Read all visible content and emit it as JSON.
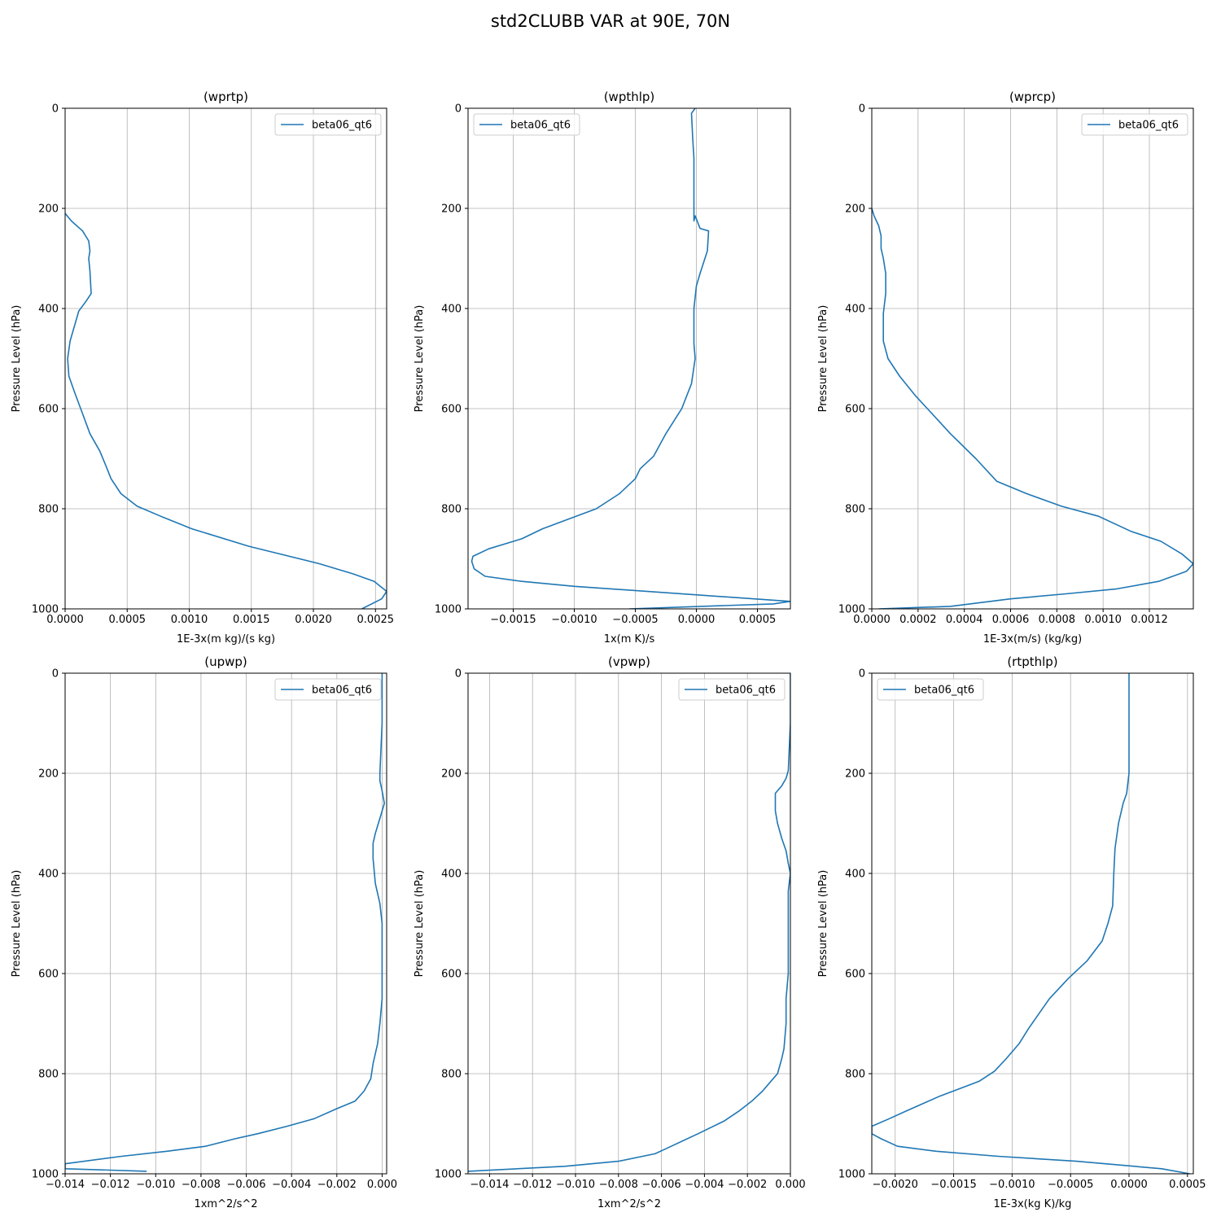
{
  "figure": {
    "title": "std2CLUBB VAR at 90E, 70N"
  },
  "chart_data": [
    {
      "type": "line",
      "title": "(wprtp)",
      "xlabel": "1E-3x(m kg)/(s kg)",
      "ylabel": "Pressure Level (hPa)",
      "xlim": [
        0,
        0.00259
      ],
      "ylim": [
        1000,
        0
      ],
      "xticks": [
        0,
        0.0005,
        0.001,
        0.0015,
        0.002,
        0.0025
      ],
      "xticklabels": [
        "0.0000",
        "0.0005",
        "0.0010",
        "0.0015",
        "0.0020",
        "0.0025"
      ],
      "yticks": [
        0,
        200,
        400,
        600,
        800,
        1000
      ],
      "yticklabels": [
        "0",
        "200",
        "400",
        "600",
        "800",
        "1000"
      ],
      "grid": true,
      "legend": "top-right",
      "color": "#1f77b4",
      "series": [
        {
          "name": "beta06_qt6",
          "x": [
            0.0,
            5e-05,
            0.00014,
            0.00019,
            0.0002,
            0.00019,
            0.0002,
            0.00021,
            0.00017,
            0.00011,
            4e-05,
            2e-05,
            3e-05,
            8e-05,
            0.00014,
            0.0002,
            0.00028,
            0.00033,
            0.00037,
            0.00045,
            0.00058,
            0.00077,
            0.00102,
            0.00148,
            0.00205,
            0.00232,
            0.00249,
            0.00259,
            0.00255,
            0.00239
          ],
          "y": [
            210,
            225,
            245,
            265,
            285,
            300,
            325,
            370,
            385,
            405,
            465,
            500,
            535,
            570,
            610,
            650,
            685,
            715,
            740,
            770,
            795,
            815,
            840,
            875,
            910,
            930,
            945,
            965,
            980,
            1000
          ]
        }
      ]
    },
    {
      "type": "line",
      "title": "(wpthlp)",
      "xlabel": "1x(m K)/s",
      "ylabel": "Pressure Level (hPa)",
      "xlim": [
        -0.00187,
        0.00077
      ],
      "ylim": [
        1000,
        0
      ],
      "xticks": [
        -0.0015,
        -0.001,
        -0.0005,
        0,
        0.0005
      ],
      "xticklabels": [
        "−0.0015",
        "−0.0010",
        "−0.0005",
        "0.0000",
        "0.0005"
      ],
      "yticks": [
        0,
        200,
        400,
        600,
        800,
        1000
      ],
      "yticklabels": [
        "0",
        "200",
        "400",
        "600",
        "800",
        "1000"
      ],
      "grid": true,
      "legend": "top-left",
      "color": "#1f77b4",
      "series": [
        {
          "name": "beta06_qt6",
          "x": [
            -1e-05,
            -4e-05,
            -3e-05,
            -2e-05,
            -2e-05,
            -2e-05,
            -2e-05,
            -1e-05,
            3e-05,
            0.0001,
            9e-05,
            3e-05,
            0.0,
            -2e-05,
            -2e-05,
            -1e-05,
            -4e-05,
            -0.00012,
            -0.00025,
            -0.00035,
            -0.00046,
            -0.0005,
            -0.00063,
            -0.00082,
            -0.00126,
            -0.00143,
            -0.0017,
            -0.00183,
            -0.00184,
            -0.00182,
            -0.00173,
            -0.00143,
            -0.001,
            0.00077,
            0.00063,
            -0.00055
          ],
          "y": [
            0,
            10,
            60,
            100,
            150,
            200,
            225,
            215,
            240,
            245,
            285,
            330,
            355,
            400,
            470,
            500,
            550,
            600,
            650,
            695,
            720,
            740,
            770,
            800,
            840,
            860,
            880,
            895,
            905,
            920,
            935,
            945,
            955,
            985,
            990,
            1000
          ]
        }
      ]
    },
    {
      "type": "line",
      "title": "(wprcp)",
      "xlabel": "1E-3x(m/s) (kg/kg)",
      "ylabel": "Pressure Level (hPa)",
      "xlim": [
        0,
        0.00139
      ],
      "ylim": [
        1000,
        0
      ],
      "xticks": [
        0,
        0.0002,
        0.0004,
        0.0006,
        0.0008,
        0.001,
        0.0012
      ],
      "xticklabels": [
        "0.0000",
        "0.0002",
        "0.0004",
        "0.0006",
        "0.0008",
        "0.0010",
        "0.0012"
      ],
      "yticks": [
        0,
        200,
        400,
        600,
        800,
        1000
      ],
      "yticklabels": [
        "0",
        "200",
        "400",
        "600",
        "800",
        "1000"
      ],
      "grid": true,
      "legend": "top-right",
      "color": "#1f77b4",
      "series": [
        {
          "name": "beta06_qt6",
          "x": [
            0.0,
            1e-05,
            3e-05,
            4e-05,
            4e-05,
            5e-05,
            6e-05,
            6e-05,
            5e-05,
            5e-05,
            7e-05,
            0.00012,
            0.00019,
            0.00026,
            0.00034,
            0.00045,
            0.00054,
            0.00067,
            0.00082,
            0.00098,
            0.00112,
            0.00125,
            0.00134,
            0.00139,
            0.00136,
            0.00124,
            0.00106,
            0.00084,
            0.0006,
            0.00034,
            3e-05
          ],
          "y": [
            200,
            215,
            235,
            255,
            280,
            300,
            330,
            370,
            410,
            465,
            500,
            535,
            575,
            610,
            650,
            700,
            745,
            770,
            795,
            815,
            845,
            865,
            890,
            910,
            925,
            945,
            960,
            970,
            980,
            995,
            1000
          ]
        }
      ]
    },
    {
      "type": "line",
      "title": "(upwp)",
      "xlabel": "1xm^2/s^2",
      "ylabel": "Pressure Level (hPa)",
      "xlim": [
        -0.014,
        0.0002
      ],
      "ylim": [
        1000,
        0
      ],
      "xticks": [
        -0.014,
        -0.012,
        -0.01,
        -0.008,
        -0.006,
        -0.004,
        -0.002,
        0
      ],
      "xticklabels": [
        "−0.014",
        "−0.012",
        "−0.010",
        "−0.008",
        "−0.006",
        "−0.004",
        "−0.002",
        "0.000"
      ],
      "yticks": [
        0,
        200,
        400,
        600,
        800,
        1000
      ],
      "yticklabels": [
        "0",
        "200",
        "400",
        "600",
        "800",
        "1000"
      ],
      "grid": true,
      "legend": "top-right",
      "color": "#1f77b4",
      "series": [
        {
          "name": "beta06_qt6",
          "x": [
            0.0,
            0.0,
            -0.0001,
            -0.0001,
            0.0,
            0.0001,
            -0.0001,
            -0.0003,
            -0.0004,
            -0.0004,
            -0.0003,
            -0.0001,
            0.0,
            0.0,
            0.0,
            0.0,
            -0.0001,
            -0.0002,
            -0.0004,
            -0.0005,
            -0.0008,
            -0.0012,
            -0.002,
            -0.003,
            -0.0042,
            -0.0055,
            -0.0065,
            -0.0078,
            -0.0095,
            -0.0115,
            -0.014,
            -0.014,
            -0.0104
          ],
          "y": [
            0,
            100,
            200,
            215,
            235,
            260,
            290,
            320,
            340,
            370,
            420,
            460,
            500,
            550,
            600,
            650,
            700,
            740,
            780,
            810,
            835,
            855,
            870,
            890,
            905,
            920,
            930,
            945,
            955,
            965,
            980,
            990,
            995
          ]
        }
      ]
    },
    {
      "type": "line",
      "title": "(vpwp)",
      "xlabel": "1xm^2/s^2",
      "ylabel": "Pressure Level (hPa)",
      "xlim": [
        -0.015,
        0.0
      ],
      "ylim": [
        1000,
        0
      ],
      "xticks": [
        -0.014,
        -0.012,
        -0.01,
        -0.008,
        -0.006,
        -0.004,
        -0.002,
        0
      ],
      "xticklabels": [
        "−0.014",
        "−0.012",
        "−0.010",
        "−0.008",
        "−0.006",
        "−0.004",
        "−0.002",
        "0.000"
      ],
      "yticks": [
        0,
        200,
        400,
        600,
        800,
        1000
      ],
      "yticklabels": [
        "0",
        "200",
        "400",
        "600",
        "800",
        "1000"
      ],
      "grid": true,
      "legend": "top-right",
      "color": "#1f77b4",
      "series": [
        {
          "name": "beta06_qt6",
          "x": [
            0.0,
            0.0,
            -0.0001,
            -0.0002,
            -0.0004,
            -0.0007,
            -0.0007,
            -0.0006,
            -0.0004,
            -0.0002,
            -0.0001,
            0.0,
            -0.0001,
            -0.0001,
            -0.0001,
            -0.0001,
            -0.0001,
            -0.0002,
            -0.0002,
            -0.0003,
            -0.0004,
            -0.0006,
            -0.0009,
            -0.0013,
            -0.0018,
            -0.0024,
            -0.0031,
            -0.0043,
            -0.0058,
            -0.0063,
            -0.008,
            -0.0105,
            -0.015
          ],
          "y": [
            0,
            100,
            195,
            210,
            225,
            240,
            275,
            300,
            330,
            355,
            380,
            400,
            435,
            460,
            500,
            550,
            600,
            650,
            700,
            750,
            770,
            800,
            815,
            835,
            855,
            875,
            895,
            920,
            950,
            960,
            975,
            985,
            995
          ]
        }
      ]
    },
    {
      "type": "line",
      "title": "(rtpthlp)",
      "xlabel": "1E-3x(kg K)/kg",
      "ylabel": "Pressure Level (hPa)",
      "xlim": [
        -0.0022,
        0.00055
      ],
      "ylim": [
        1000,
        0
      ],
      "xticks": [
        -0.002,
        -0.0015,
        -0.001,
        -0.0005,
        0,
        0.0005
      ],
      "xticklabels": [
        "−0.0020",
        "−0.0015",
        "−0.0010",
        "−0.0005",
        "0.0000",
        "0.0005"
      ],
      "yticks": [
        0,
        200,
        400,
        600,
        800,
        1000
      ],
      "yticklabels": [
        "0",
        "200",
        "400",
        "600",
        "800",
        "1000"
      ],
      "grid": true,
      "legend": "top-left",
      "color": "#1f77b4",
      "series": [
        {
          "name": "beta06_qt6",
          "x": [
            0.0,
            0.0,
            0.0,
            -2e-05,
            -5e-05,
            -9e-05,
            -0.00012,
            -0.00013,
            -0.00014,
            -0.00018,
            -0.00023,
            -0.00036,
            -0.00052,
            -0.00068,
            -0.00077,
            -0.00086,
            -0.00094,
            -0.00105,
            -0.00115,
            -0.00128,
            -0.00162,
            -0.00191,
            -0.00205,
            -0.0022,
            -0.0022,
            -0.00212,
            -0.00198,
            -0.00165,
            -0.00112,
            -0.00045,
            0.00028,
            0.00052
          ],
          "y": [
            0,
            100,
            200,
            240,
            260,
            300,
            350,
            400,
            465,
            500,
            535,
            575,
            610,
            650,
            680,
            710,
            740,
            770,
            795,
            815,
            845,
            875,
            890,
            905,
            920,
            930,
            945,
            955,
            965,
            975,
            990,
            1000
          ]
        }
      ]
    }
  ]
}
